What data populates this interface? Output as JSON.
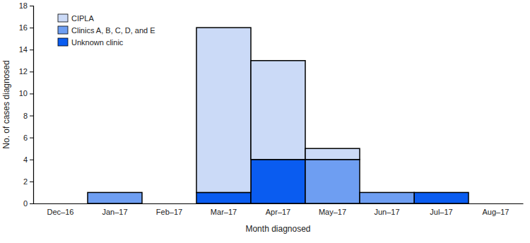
{
  "chart_data": {
    "type": "bar",
    "stacked": true,
    "legend": "top-left",
    "xlabel": "Month diagnosed",
    "ylabel": "No. of cases diagnosed",
    "categories": [
      "Dec–16",
      "Jan–17",
      "Feb–17",
      "Mar–17",
      "Apr–17",
      "May–17",
      "Jun–17",
      "Jul–17",
      "Aug–17"
    ],
    "series": [
      {
        "name": "Unknown clinic",
        "color": "#0a5cf0",
        "values": [
          0,
          0,
          0,
          1,
          4,
          0,
          0,
          1,
          0
        ]
      },
      {
        "name": "Clinics A, B, C, D, and E",
        "color": "#6e9ef2",
        "values": [
          0,
          1,
          0,
          0,
          0,
          4,
          1,
          0,
          0
        ]
      },
      {
        "name": "CIPLA",
        "color": "#cbdaf7",
        "values": [
          0,
          0,
          0,
          15,
          9,
          1,
          0,
          0,
          0
        ]
      }
    ],
    "ylim": [
      0,
      18
    ],
    "yticks": [
      0,
      2,
      4,
      6,
      8,
      10,
      12,
      14,
      16,
      18
    ]
  }
}
